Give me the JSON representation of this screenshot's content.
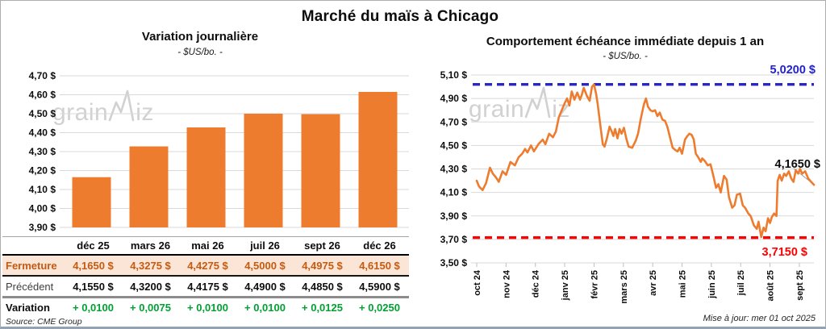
{
  "page": {
    "title": "Marché du maïs à Chicago",
    "watermark": "grainwiz",
    "source": "Source: CME Group",
    "updated": "Mise à jour: mer 01 oct 2025"
  },
  "colors": {
    "orange": "#ED7C2F",
    "blue": "#2626C9",
    "blue_label": "#2222CC",
    "red": "#FE0000",
    "green": "#00A132",
    "fermeture_bg": "#FBE5D6",
    "fermeture_text": "#C55A11",
    "gridline": "#D9D9D9",
    "axis": "#BFBFBF",
    "leader": "#999999",
    "tick_text": "#0d0d0d"
  },
  "chart_data": [
    {
      "id": "variation-journaliere",
      "type": "bar",
      "title": "Variation journalière",
      "subtitle": "- $US/bo. -",
      "categories": [
        "déc 25",
        "mars 26",
        "mai 26",
        "juil 26",
        "sept 26",
        "déc 26"
      ],
      "values": [
        4.165,
        4.3275,
        4.4275,
        4.5,
        4.4975,
        4.615
      ],
      "ylim": [
        3.9,
        4.7
      ],
      "ytick_values": [
        4.7,
        4.6,
        4.5,
        4.4,
        4.3,
        4.2,
        4.1,
        4.0,
        3.9
      ],
      "ytick_labels": [
        "4,70 $",
        "4,60 $",
        "4,50 $",
        "4,40 $",
        "4,30 $",
        "4,20 $",
        "4,10 $",
        "4,00 $",
        "3,90 $"
      ],
      "grid": true,
      "legend": "none"
    },
    {
      "id": "comportement-echeance-immediate",
      "type": "line",
      "title": "Comportement échéance immédiate depuis 1 an",
      "subtitle": "- $US/bo. -",
      "ylim": [
        3.5,
        5.1
      ],
      "ytick_values": [
        5.1,
        4.9,
        4.7,
        4.5,
        4.3,
        4.1,
        3.9,
        3.7,
        3.5
      ],
      "ytick_labels": [
        "5,10 $",
        "4,90 $",
        "4,70 $",
        "4,50 $",
        "4,30 $",
        "4,10 $",
        "3,90 $",
        "3,70 $",
        "3,50 $"
      ],
      "xtick_labels": [
        "oct 24",
        "nov 24",
        "déc 24",
        "janv 25",
        "févr 25",
        "mars 25",
        "avr 25",
        "mai 25",
        "juin 25",
        "juil 25",
        "août 25",
        "sept 25"
      ],
      "grid": true,
      "legend": "none",
      "ref_high": {
        "value": 5.02,
        "label": "5,0200 $"
      },
      "ref_low": {
        "value": 3.715,
        "label": "3,7150 $"
      },
      "last_point": {
        "value": 4.165,
        "label": "4,1650 $"
      },
      "series": [
        [
          0.0,
          4.2
        ],
        [
          0.08,
          4.15
        ],
        [
          0.2,
          4.12
        ],
        [
          0.32,
          4.18
        ],
        [
          0.45,
          4.31
        ],
        [
          0.55,
          4.26
        ],
        [
          0.68,
          4.22
        ],
        [
          0.75,
          4.19
        ],
        [
          0.88,
          4.28
        ],
        [
          1.0,
          4.25
        ],
        [
          1.15,
          4.36
        ],
        [
          1.3,
          4.33
        ],
        [
          1.43,
          4.4
        ],
        [
          1.55,
          4.43
        ],
        [
          1.65,
          4.47
        ],
        [
          1.73,
          4.44
        ],
        [
          1.85,
          4.5
        ],
        [
          1.95,
          4.45
        ],
        [
          2.1,
          4.51
        ],
        [
          2.25,
          4.55
        ],
        [
          2.34,
          4.51
        ],
        [
          2.47,
          4.6
        ],
        [
          2.6,
          4.57
        ],
        [
          2.7,
          4.62
        ],
        [
          2.8,
          4.74
        ],
        [
          2.9,
          4.8
        ],
        [
          3.0,
          4.86
        ],
        [
          3.08,
          4.9
        ],
        [
          3.16,
          4.84
        ],
        [
          3.24,
          4.96
        ],
        [
          3.33,
          4.89
        ],
        [
          3.43,
          4.95
        ],
        [
          3.52,
          4.89
        ],
        [
          3.58,
          4.93
        ],
        [
          3.65,
          4.99
        ],
        [
          3.76,
          4.92
        ],
        [
          3.85,
          4.88
        ],
        [
          3.93,
          5.0
        ],
        [
          4.0,
          5.02
        ],
        [
          4.07,
          4.94
        ],
        [
          4.12,
          4.86
        ],
        [
          4.18,
          4.74
        ],
        [
          4.24,
          4.62
        ],
        [
          4.3,
          4.51
        ],
        [
          4.36,
          4.49
        ],
        [
          4.44,
          4.56
        ],
        [
          4.53,
          4.66
        ],
        [
          4.6,
          4.62
        ],
        [
          4.66,
          4.58
        ],
        [
          4.72,
          4.64
        ],
        [
          4.8,
          4.56
        ],
        [
          4.87,
          4.64
        ],
        [
          4.94,
          4.6
        ],
        [
          5.02,
          4.65
        ],
        [
          5.1,
          4.56
        ],
        [
          5.18,
          4.49
        ],
        [
          5.3,
          4.48
        ],
        [
          5.42,
          4.54
        ],
        [
          5.5,
          4.6
        ],
        [
          5.58,
          4.71
        ],
        [
          5.63,
          4.77
        ],
        [
          5.7,
          4.85
        ],
        [
          5.77,
          4.9
        ],
        [
          5.84,
          4.83
        ],
        [
          5.92,
          4.8
        ],
        [
          6.0,
          4.79
        ],
        [
          6.08,
          4.8
        ],
        [
          6.16,
          4.75
        ],
        [
          6.24,
          4.78
        ],
        [
          6.33,
          4.72
        ],
        [
          6.42,
          4.71
        ],
        [
          6.5,
          4.66
        ],
        [
          6.58,
          4.58
        ],
        [
          6.68,
          4.48
        ],
        [
          6.78,
          4.46
        ],
        [
          6.85,
          4.45
        ],
        [
          6.92,
          4.48
        ],
        [
          7.0,
          4.43
        ],
        [
          7.1,
          4.55
        ],
        [
          7.18,
          4.58
        ],
        [
          7.25,
          4.6
        ],
        [
          7.33,
          4.59
        ],
        [
          7.4,
          4.55
        ],
        [
          7.47,
          4.43
        ],
        [
          7.55,
          4.4
        ],
        [
          7.64,
          4.36
        ],
        [
          7.69,
          4.39
        ],
        [
          7.77,
          4.37
        ],
        [
          7.88,
          4.33
        ],
        [
          7.97,
          4.34
        ],
        [
          8.05,
          4.26
        ],
        [
          8.16,
          4.14
        ],
        [
          8.24,
          4.17
        ],
        [
          8.32,
          4.1
        ],
        [
          8.43,
          4.24
        ],
        [
          8.52,
          4.21
        ],
        [
          8.6,
          4.06
        ],
        [
          8.71,
          3.97
        ],
        [
          8.79,
          3.99
        ],
        [
          8.87,
          4.08
        ],
        [
          8.98,
          4.09
        ],
        [
          9.07,
          3.99
        ],
        [
          9.15,
          3.97
        ],
        [
          9.26,
          3.92
        ],
        [
          9.34,
          3.9
        ],
        [
          9.45,
          3.82
        ],
        [
          9.55,
          3.79
        ],
        [
          9.61,
          3.85
        ],
        [
          9.7,
          3.72
        ],
        [
          9.78,
          3.8
        ],
        [
          9.85,
          3.77
        ],
        [
          9.93,
          3.88
        ],
        [
          10.0,
          3.84
        ],
        [
          10.06,
          3.89
        ],
        [
          10.14,
          3.92
        ],
        [
          10.22,
          3.9
        ],
        [
          10.26,
          4.2
        ],
        [
          10.33,
          4.25
        ],
        [
          10.4,
          4.2
        ],
        [
          10.48,
          4.26
        ],
        [
          10.55,
          4.24
        ],
        [
          10.64,
          4.28
        ],
        [
          10.72,
          4.22
        ],
        [
          10.8,
          4.19
        ],
        [
          10.88,
          4.29
        ],
        [
          10.96,
          4.26
        ],
        [
          11.02,
          4.3
        ],
        [
          11.1,
          4.26
        ],
        [
          11.2,
          4.28
        ],
        [
          11.3,
          4.22
        ],
        [
          11.4,
          4.19
        ],
        [
          11.5,
          4.165
        ]
      ]
    }
  ],
  "table": {
    "columns": [
      "déc 25",
      "mars 26",
      "mai 26",
      "juil 26",
      "sept 26",
      "déc 26"
    ],
    "rows": [
      {
        "label": "Fermeture",
        "values": [
          "4,1650 $",
          "4,3275 $",
          "4,4275 $",
          "4,5000 $",
          "4,4975 $",
          "4,6150 $"
        ]
      },
      {
        "label": "Précédent",
        "values": [
          "4,1550 $",
          "4,3200 $",
          "4,4175 $",
          "4,4900 $",
          "4,4850 $",
          "4,5900 $"
        ]
      },
      {
        "label": "Variation",
        "values": [
          "+ 0,0100",
          "+ 0,0075",
          "+ 0,0100",
          "+ 0,0100",
          "+ 0,0125",
          "+ 0,0250"
        ]
      }
    ]
  }
}
